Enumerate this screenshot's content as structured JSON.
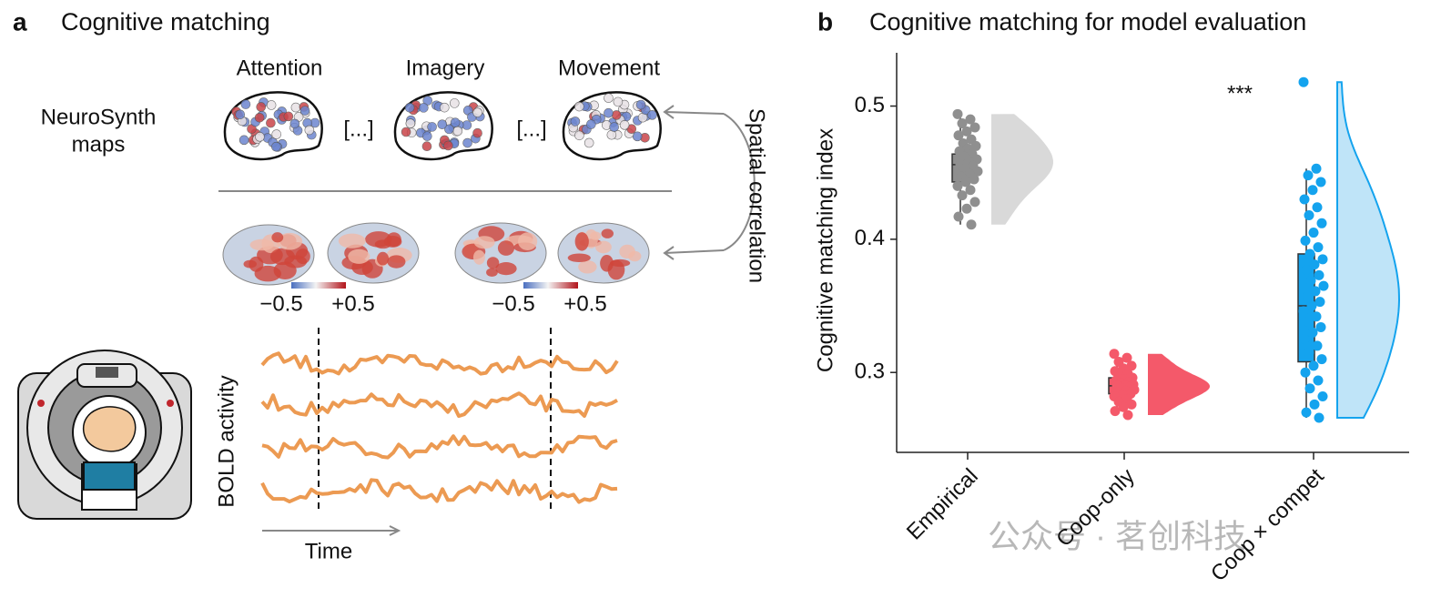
{
  "panel_a": {
    "label": "a",
    "title": "Cognitive matching",
    "maps": [
      "Attention",
      "Imagery",
      "Movement"
    ],
    "ellipsis": [
      "[...]",
      "[...]"
    ],
    "source": [
      "NeuroSynth",
      "maps"
    ],
    "arrow_label": "Spatial correlation",
    "colorbars": [
      [
        "−0.5",
        "+0.5"
      ],
      [
        "−0.5",
        "+0.5"
      ]
    ],
    "signal_label": "BOLD activity",
    "time_label": "Time"
  },
  "chart_data": {
    "type": "raincloud",
    "label": "b",
    "title": "Cognitive matching for model evaluation",
    "ylabel": "Cognitive matching index",
    "annotation": "***",
    "categories": [
      "Empirical",
      "Coop-only",
      "Coop × compet"
    ],
    "ylim": [
      0.24,
      0.54
    ],
    "yticks": [
      0.3,
      0.4,
      0.5
    ],
    "series": [
      {
        "color": "#8f8f8f",
        "cloud_color": "#d9d9d9",
        "box": {
          "whisker_low": 0.411,
          "q1": 0.443,
          "median": 0.456,
          "q3": 0.464,
          "whisker_high": 0.494
        },
        "points": [
          0.494,
          0.49,
          0.487,
          0.484,
          0.481,
          0.478,
          0.475,
          0.472,
          0.47,
          0.468,
          0.466,
          0.464,
          0.462,
          0.46,
          0.458,
          0.456,
          0.455,
          0.453,
          0.451,
          0.449,
          0.447,
          0.445,
          0.443,
          0.44,
          0.437,
          0.433,
          0.428,
          0.423,
          0.417,
          0.411
        ]
      },
      {
        "color": "#f4596a",
        "cloud_color": "#f4596a",
        "box": {
          "whisker_low": 0.268,
          "q1": 0.284,
          "median": 0.29,
          "q3": 0.296,
          "whisker_high": 0.312
        },
        "points": [
          0.314,
          0.311,
          0.308,
          0.305,
          0.303,
          0.301,
          0.299,
          0.297,
          0.296,
          0.295,
          0.294,
          0.293,
          0.292,
          0.291,
          0.29,
          0.29,
          0.289,
          0.288,
          0.287,
          0.286,
          0.285,
          0.284,
          0.283,
          0.282,
          0.28,
          0.278,
          0.276,
          0.274,
          0.271,
          0.268
        ]
      },
      {
        "color": "#14a3ee",
        "cloud_color": "#bfe4f8",
        "box": {
          "whisker_low": 0.266,
          "q1": 0.308,
          "median": 0.35,
          "q3": 0.389,
          "whisker_high": 0.453
        },
        "points": [
          0.518,
          0.453,
          0.448,
          0.443,
          0.437,
          0.43,
          0.424,
          0.418,
          0.412,
          0.405,
          0.399,
          0.394,
          0.389,
          0.385,
          0.381,
          0.377,
          0.373,
          0.369,
          0.365,
          0.361,
          0.357,
          0.353,
          0.35,
          0.346,
          0.342,
          0.338,
          0.334,
          0.33,
          0.325,
          0.32,
          0.315,
          0.31,
          0.305,
          0.3,
          0.294,
          0.288,
          0.282,
          0.276,
          0.27,
          0.266
        ]
      }
    ]
  },
  "watermark": "公众号 · 茗创科技"
}
